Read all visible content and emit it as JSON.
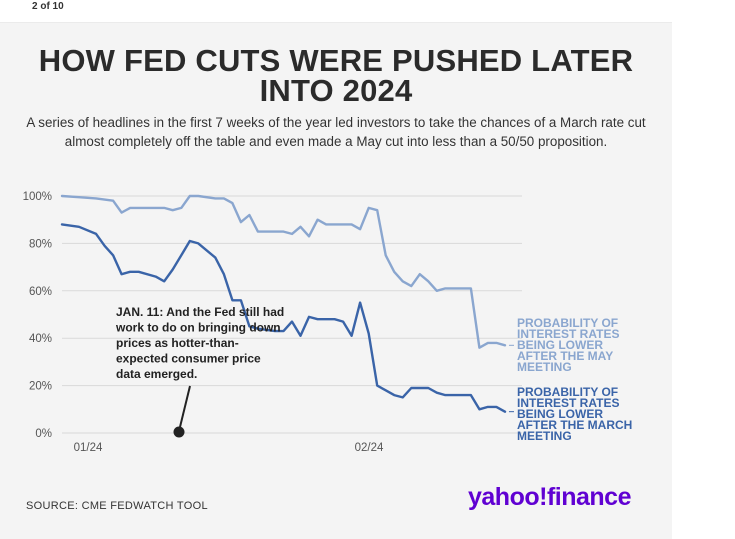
{
  "header": {
    "page_counter": "2 of 10"
  },
  "title": "HOW FED CUTS WERE PUSHED LATER INTO 2024",
  "subtitle": "A series of headlines in the first 7 weeks of the year led investors to take the chances of a March rate cut almost completely off the table and even made a May cut into less than a 50/50 proposition.",
  "source": "SOURCE: CME FEDWATCH TOOL",
  "logo": {
    "text": "yahoo!finance",
    "color": "#6001d2"
  },
  "colors": {
    "may": "#8aa6cf",
    "march": "#3a64a8",
    "grid": "#d9d9d9",
    "text": "#333333"
  },
  "chart_data": {
    "type": "line",
    "title": "HOW FED CUTS WERE PUSHED LATER INTO 2024",
    "xlabel": "",
    "ylabel": "",
    "x_ticks": [
      "01/24",
      "02/24"
    ],
    "x_range": [
      "2023-12-28",
      "2024-02-20"
    ],
    "ylim": [
      0,
      100
    ],
    "y_ticks": [
      "0%",
      "20%",
      "40%",
      "60%",
      "80%",
      "100%"
    ],
    "grid": true,
    "legend": "end-of-line labels",
    "series": [
      {
        "name": "PROBABILITY OF INTEREST RATES BEING LOWER AFTER THE MAY MEETING",
        "color": "#8aa6cf",
        "points": [
          [
            "2023-12-28",
            100
          ],
          [
            "2023-12-30",
            99.5
          ],
          [
            "2024-01-01",
            99
          ],
          [
            "2024-01-03",
            98
          ],
          [
            "2024-01-04",
            93
          ],
          [
            "2024-01-05",
            95
          ],
          [
            "2024-01-08",
            95
          ],
          [
            "2024-01-09",
            95
          ],
          [
            "2024-01-10",
            94
          ],
          [
            "2024-01-11",
            95
          ],
          [
            "2024-01-12",
            100
          ],
          [
            "2024-01-13",
            100
          ],
          [
            "2024-01-15",
            99
          ],
          [
            "2024-01-16",
            99
          ],
          [
            "2024-01-17",
            97
          ],
          [
            "2024-01-18",
            89
          ],
          [
            "2024-01-19",
            92
          ],
          [
            "2024-01-20",
            85
          ],
          [
            "2024-01-22",
            85
          ],
          [
            "2024-01-23",
            85
          ],
          [
            "2024-01-24",
            84
          ],
          [
            "2024-01-25",
            87
          ],
          [
            "2024-01-26",
            83
          ],
          [
            "2024-01-27",
            90
          ],
          [
            "2024-01-28",
            88
          ],
          [
            "2024-01-29",
            88
          ],
          [
            "2024-01-30",
            88
          ],
          [
            "2024-01-31",
            88
          ],
          [
            "2024-02-01",
            86
          ],
          [
            "2024-02-02",
            95
          ],
          [
            "2024-02-03",
            94
          ],
          [
            "2024-02-04",
            75
          ],
          [
            "2024-02-05",
            68
          ],
          [
            "2024-02-06",
            64
          ],
          [
            "2024-02-07",
            62
          ],
          [
            "2024-02-08",
            67
          ],
          [
            "2024-02-09",
            64
          ],
          [
            "2024-02-10",
            60
          ],
          [
            "2024-02-11",
            61
          ],
          [
            "2024-02-12",
            61
          ],
          [
            "2024-02-13",
            61
          ],
          [
            "2024-02-14",
            61
          ],
          [
            "2024-02-15",
            36
          ],
          [
            "2024-02-16",
            38
          ],
          [
            "2024-02-17",
            38
          ],
          [
            "2024-02-18",
            37
          ]
        ]
      },
      {
        "name": "PROBABILITY OF INTEREST RATES BEING LOWER AFTER THE MARCH MEETING",
        "color": "#3a64a8",
        "points": [
          [
            "2023-12-28",
            88
          ],
          [
            "2023-12-30",
            87
          ],
          [
            "2024-01-01",
            84
          ],
          [
            "2024-01-02",
            79
          ],
          [
            "2024-01-03",
            75
          ],
          [
            "2024-01-04",
            67
          ],
          [
            "2024-01-05",
            68
          ],
          [
            "2024-01-06",
            68
          ],
          [
            "2024-01-08",
            66
          ],
          [
            "2024-01-09",
            64
          ],
          [
            "2024-01-10",
            69
          ],
          [
            "2024-01-11",
            75
          ],
          [
            "2024-01-12",
            81
          ],
          [
            "2024-01-13",
            80
          ],
          [
            "2024-01-15",
            74
          ],
          [
            "2024-01-16",
            67
          ],
          [
            "2024-01-17",
            56
          ],
          [
            "2024-01-18",
            56
          ],
          [
            "2024-01-19",
            45
          ],
          [
            "2024-01-20",
            44
          ],
          [
            "2024-01-22",
            43
          ],
          [
            "2024-01-23",
            43
          ],
          [
            "2024-01-24",
            47
          ],
          [
            "2024-01-25",
            41
          ],
          [
            "2024-01-26",
            49
          ],
          [
            "2024-01-27",
            48
          ],
          [
            "2024-01-29",
            48
          ],
          [
            "2024-01-30",
            47
          ],
          [
            "2024-01-31",
            41
          ],
          [
            "2024-02-01",
            55
          ],
          [
            "2024-02-02",
            42
          ],
          [
            "2024-02-03",
            20
          ],
          [
            "2024-02-04",
            18
          ],
          [
            "2024-02-05",
            16
          ],
          [
            "2024-02-06",
            15
          ],
          [
            "2024-02-07",
            19
          ],
          [
            "2024-02-08",
            19
          ],
          [
            "2024-02-09",
            19
          ],
          [
            "2024-02-10",
            17
          ],
          [
            "2024-02-11",
            16
          ],
          [
            "2024-02-12",
            16
          ],
          [
            "2024-02-14",
            16
          ],
          [
            "2024-02-15",
            10
          ],
          [
            "2024-02-16",
            11
          ],
          [
            "2024-02-17",
            11
          ],
          [
            "2024-02-18",
            9
          ]
        ]
      }
    ],
    "series_labels": [
      {
        "lines": [
          "PROBABILITY OF",
          "INTEREST RATES",
          "BEING LOWER",
          "AFTER THE MAY",
          "MEETING"
        ]
      },
      {
        "lines": [
          "PROBABILITY OF",
          "INTEREST RATES",
          "BEING LOWER",
          "AFTER THE MARCH",
          "MEETING"
        ]
      }
    ],
    "annotations": [
      {
        "date": "2024-01-11",
        "lines": [
          "JAN. 11: And the Fed still had",
          "work to do on bringing down",
          "prices as hotter-than-",
          "expected consumer price",
          "data emerged."
        ]
      }
    ]
  }
}
